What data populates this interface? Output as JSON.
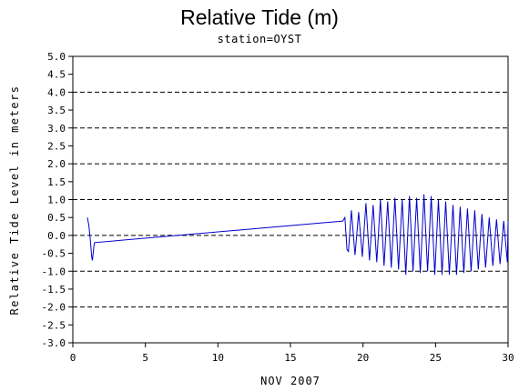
{
  "chart_data": {
    "type": "line",
    "title": "Relative Tide (m)",
    "subtitle": "station=OYST",
    "xlabel": "NOV 2007",
    "ylabel": "Relative Tide Level in meters",
    "xlim": [
      0,
      30
    ],
    "ylim": [
      -3.0,
      5.0
    ],
    "x_ticks": [
      0,
      5,
      10,
      15,
      20,
      25,
      30
    ],
    "y_ticks": [
      5.0,
      4.5,
      4.0,
      3.5,
      3.0,
      2.5,
      2.0,
      1.5,
      1.0,
      0.5,
      0.0,
      -0.5,
      -1.0,
      -1.5,
      -2.0,
      -2.5,
      -3.0
    ],
    "y_tick_labels": [
      "5.0",
      "4.5",
      "4.0",
      "3.5",
      "3.0",
      "2.5",
      "2.0",
      "1.5",
      "1.0",
      "0.5",
      "0.0",
      "-0.5",
      "-1.0",
      "-1.5",
      "-2.0",
      "-2.5",
      "-3.0"
    ],
    "gridlines_y": [
      5.0,
      4.0,
      3.0,
      2.0,
      1.0,
      0.0,
      -1.0,
      -2.0,
      -3.0
    ],
    "grid_style": "dashed horizontal at whole meters",
    "line_color": "#0000cc",
    "series": [
      {
        "values": [
          [
            1.0,
            0.5
          ],
          [
            1.1,
            0.3
          ],
          [
            1.2,
            -0.1
          ],
          [
            1.3,
            -0.6
          ],
          [
            1.35,
            -0.7
          ],
          [
            1.45,
            -0.3
          ],
          [
            1.5,
            -0.2
          ],
          [
            18.6,
            0.4
          ],
          [
            18.75,
            0.5
          ],
          [
            18.9,
            -0.4
          ],
          [
            19.0,
            -0.45
          ],
          [
            19.2,
            0.7
          ],
          [
            19.45,
            -0.55
          ],
          [
            19.7,
            0.65
          ],
          [
            19.95,
            -0.6
          ],
          [
            20.2,
            0.9
          ],
          [
            20.45,
            -0.7
          ],
          [
            20.7,
            0.85
          ],
          [
            20.95,
            -0.75
          ],
          [
            21.2,
            1.0
          ],
          [
            21.45,
            -0.85
          ],
          [
            21.7,
            0.95
          ],
          [
            21.95,
            -0.9
          ],
          [
            22.2,
            1.05
          ],
          [
            22.45,
            -0.95
          ],
          [
            22.7,
            1.0
          ],
          [
            22.95,
            -1.1
          ],
          [
            23.2,
            1.1
          ],
          [
            23.45,
            -1.0
          ],
          [
            23.7,
            1.05
          ],
          [
            23.95,
            -1.05
          ],
          [
            24.2,
            1.15
          ],
          [
            24.45,
            -1.0
          ],
          [
            24.7,
            1.1
          ],
          [
            24.95,
            -1.1
          ],
          [
            25.2,
            1.0
          ],
          [
            25.45,
            -1.1
          ],
          [
            25.7,
            0.95
          ],
          [
            25.95,
            -1.1
          ],
          [
            26.2,
            0.85
          ],
          [
            26.45,
            -1.1
          ],
          [
            26.7,
            0.8
          ],
          [
            26.95,
            -1.05
          ],
          [
            27.2,
            0.75
          ],
          [
            27.45,
            -1.0
          ],
          [
            27.7,
            0.7
          ],
          [
            27.95,
            -0.95
          ],
          [
            28.2,
            0.6
          ],
          [
            28.45,
            -0.9
          ],
          [
            28.7,
            0.5
          ],
          [
            28.95,
            -0.85
          ],
          [
            29.2,
            0.45
          ],
          [
            29.45,
            -0.8
          ],
          [
            29.7,
            0.4
          ],
          [
            29.95,
            -0.75
          ],
          [
            30.0,
            0.4
          ]
        ]
      }
    ]
  }
}
